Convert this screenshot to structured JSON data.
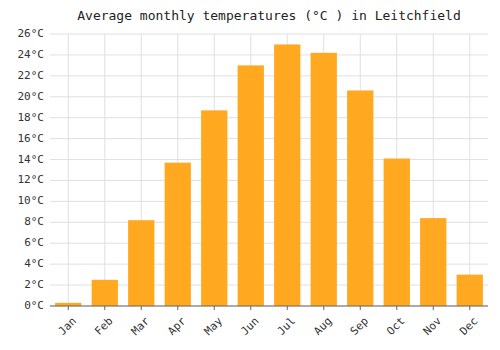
{
  "chart_data": {
    "type": "bar",
    "title": "Average monthly temperatures (°C ) in Leitchfield",
    "categories": [
      "Jan",
      "Feb",
      "Mar",
      "Apr",
      "May",
      "Jun",
      "Jul",
      "Aug",
      "Sep",
      "Oct",
      "Nov",
      "Dec"
    ],
    "values": [
      0.3,
      2.5,
      8.2,
      13.7,
      18.7,
      23.0,
      25.0,
      24.2,
      20.6,
      14.1,
      8.4,
      3.0
    ],
    "color": "#FFA820",
    "ylim": [
      0,
      26
    ],
    "yticks": [
      {
        "value": 0,
        "label": "0°C"
      },
      {
        "value": 2,
        "label": "2°C"
      },
      {
        "value": 4,
        "label": "4°C"
      },
      {
        "value": 6,
        "label": "6°C"
      },
      {
        "value": 8,
        "label": "8°C"
      },
      {
        "value": 10,
        "label": "10°C"
      },
      {
        "value": 12,
        "label": "12°C"
      },
      {
        "value": 14,
        "label": "14°C"
      },
      {
        "value": 16,
        "label": "16°C"
      },
      {
        "value": 18,
        "label": "18°C"
      },
      {
        "value": 20,
        "label": "20°C"
      },
      {
        "value": 22,
        "label": "22°C"
      },
      {
        "value": 24,
        "label": "24°C"
      },
      {
        "value": 26,
        "label": "26°C"
      }
    ],
    "grid": true
  }
}
